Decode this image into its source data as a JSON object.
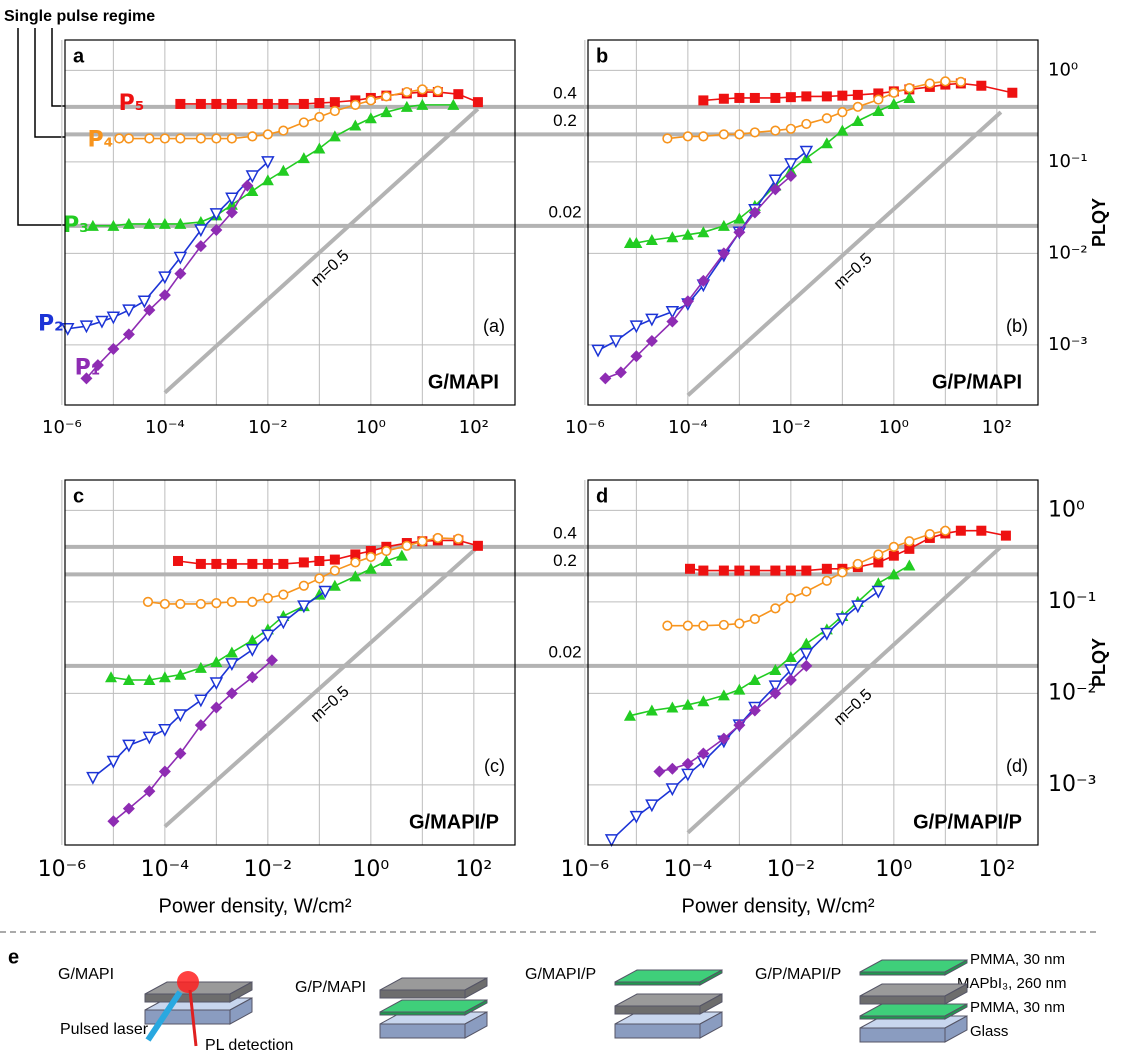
{
  "title": "Single pulse regime",
  "chart_data": [
    {
      "type": "line",
      "letter": "a",
      "sample": "G/MAPI",
      "caption": "(a)",
      "xlim": [
        1.15e-06,
        630
      ],
      "ylim": [
        0.00022,
        2.15
      ],
      "xticks": [
        {
          "value": 1e-06,
          "label": "10⁻⁶"
        },
        {
          "value": 0.0001,
          "label": "10⁻⁴"
        },
        {
          "value": 0.01,
          "label": "10⁻²"
        },
        {
          "value": 1,
          "label": "10⁰"
        },
        {
          "value": 100,
          "label": "10²"
        }
      ],
      "xgrid": [
        1e-05,
        0.001,
        0.1,
        10
      ],
      "yticks": [
        0.001,
        0.01,
        0.1,
        1
      ],
      "hlines": [
        0.4,
        0.2,
        0.02
      ],
      "slope": {
        "label": "m=0.5",
        "x": [
          0.0001,
          120
        ],
        "values": [
          0.0003,
          0.38
        ]
      },
      "series": [
        {
          "name": "P₅",
          "color": "#ee1111",
          "marker": "square",
          "x": [
            0.0002,
            0.0005,
            0.001,
            0.002,
            0.005,
            0.01,
            0.02,
            0.05,
            0.1,
            0.2,
            0.5,
            1,
            2,
            5,
            10,
            20,
            50,
            120
          ],
          "values": [
            0.43,
            0.43,
            0.43,
            0.43,
            0.43,
            0.43,
            0.43,
            0.43,
            0.44,
            0.45,
            0.47,
            0.5,
            0.53,
            0.56,
            0.58,
            0.58,
            0.55,
            0.45
          ]
        },
        {
          "name": "P₄",
          "color": "#f7941d",
          "marker": "circle-open",
          "x": [
            1.3e-05,
            2e-05,
            5e-05,
            0.0001,
            0.0002,
            0.0005,
            0.001,
            0.002,
            0.005,
            0.01,
            0.02,
            0.05,
            0.1,
            0.2,
            0.5,
            1,
            2,
            5,
            10,
            20
          ],
          "values": [
            0.18,
            0.18,
            0.18,
            0.18,
            0.18,
            0.18,
            0.18,
            0.18,
            0.19,
            0.2,
            0.22,
            0.27,
            0.31,
            0.36,
            0.42,
            0.47,
            0.52,
            0.58,
            0.62,
            0.6
          ]
        },
        {
          "name": "P₃",
          "color": "#22cc22",
          "marker": "triangle",
          "x": [
            4e-06,
            1e-05,
            2e-05,
            5e-05,
            0.0001,
            0.0002,
            0.0005,
            0.001,
            0.002,
            0.005,
            0.01,
            0.02,
            0.05,
            0.1,
            0.2,
            0.5,
            1,
            2,
            5,
            10,
            40
          ],
          "values": [
            0.02,
            0.02,
            0.021,
            0.021,
            0.021,
            0.021,
            0.022,
            0.026,
            0.034,
            0.048,
            0.063,
            0.08,
            0.11,
            0.14,
            0.19,
            0.25,
            0.3,
            0.35,
            0.4,
            0.42,
            0.42
          ]
        },
        {
          "name": "P₂",
          "color": "#1c34d6",
          "marker": "triangle-down-open",
          "x": [
            1.3e-06,
            3e-06,
            6e-06,
            1e-05,
            2e-05,
            4e-05,
            0.0001,
            0.0002,
            0.0005,
            0.001,
            0.002,
            0.005,
            0.01
          ],
          "values": [
            0.0015,
            0.0016,
            0.0018,
            0.002,
            0.0024,
            0.003,
            0.0055,
            0.009,
            0.018,
            0.027,
            0.04,
            0.07,
            0.1
          ]
        },
        {
          "name": "P₁",
          "color": "#8e2cb3",
          "marker": "diamond",
          "x": [
            3e-06,
            5e-06,
            1e-05,
            2e-05,
            5e-05,
            0.0001,
            0.0002,
            0.0005,
            0.001,
            0.002,
            0.004
          ],
          "values": [
            0.00043,
            0.0006,
            0.0009,
            0.0013,
            0.0024,
            0.0035,
            0.006,
            0.012,
            0.018,
            0.028,
            0.055
          ]
        }
      ]
    },
    {
      "type": "line",
      "letter": "b",
      "sample": "G/P/MAPI",
      "caption": "(b)",
      "ylabel": "PLQY",
      "xlim": [
        1.15e-06,
        630
      ],
      "ylim": [
        0.00022,
        2.15
      ],
      "xticks": [
        {
          "value": 1e-06,
          "label": "10⁻⁶"
        },
        {
          "value": 0.0001,
          "label": "10⁻⁴"
        },
        {
          "value": 0.01,
          "label": "10⁻²"
        },
        {
          "value": 1,
          "label": "10⁰"
        },
        {
          "value": 100,
          "label": "10²"
        }
      ],
      "xgrid": [
        1e-05,
        0.001,
        0.1,
        10
      ],
      "yticks": [
        {
          "value": 0.001,
          "label": "10⁻³"
        },
        {
          "value": 0.01,
          "label": "10⁻²"
        },
        {
          "value": 0.1,
          "label": "10⁻¹"
        },
        {
          "value": 1,
          "label": "10⁰"
        }
      ],
      "hlines": [
        0.4,
        0.2,
        0.02
      ],
      "slope": {
        "label": "m=0.5",
        "x": [
          0.0001,
          120
        ],
        "values": [
          0.00028,
          0.35
        ]
      },
      "series": [
        {
          "color": "#ee1111",
          "marker": "square",
          "x": [
            0.0002,
            0.0005,
            0.001,
            0.002,
            0.005,
            0.01,
            0.02,
            0.05,
            0.1,
            0.2,
            0.5,
            1,
            2,
            5,
            10,
            20,
            50,
            200
          ],
          "values": [
            0.47,
            0.49,
            0.5,
            0.5,
            0.5,
            0.51,
            0.52,
            0.52,
            0.53,
            0.54,
            0.56,
            0.59,
            0.62,
            0.66,
            0.7,
            0.72,
            0.68,
            0.57
          ]
        },
        {
          "color": "#f7941d",
          "marker": "circle-open",
          "x": [
            4e-05,
            0.0001,
            0.0002,
            0.0005,
            0.001,
            0.002,
            0.005,
            0.01,
            0.02,
            0.05,
            0.1,
            0.2,
            0.5,
            1,
            2,
            5,
            10,
            20
          ],
          "values": [
            0.18,
            0.19,
            0.19,
            0.2,
            0.2,
            0.21,
            0.22,
            0.23,
            0.26,
            0.3,
            0.35,
            0.4,
            0.48,
            0.57,
            0.64,
            0.72,
            0.76,
            0.75
          ]
        },
        {
          "color": "#22cc22",
          "marker": "triangle",
          "x": [
            7.5e-06,
            1e-05,
            2e-05,
            5e-05,
            0.0001,
            0.0002,
            0.0005,
            0.001,
            0.002,
            0.005,
            0.01,
            0.02,
            0.05,
            0.1,
            0.2,
            0.5,
            1,
            2
          ],
          "values": [
            0.013,
            0.013,
            0.014,
            0.015,
            0.016,
            0.017,
            0.02,
            0.024,
            0.033,
            0.055,
            0.08,
            0.11,
            0.16,
            0.22,
            0.28,
            0.36,
            0.43,
            0.5
          ]
        },
        {
          "color": "#1c34d6",
          "marker": "triangle-down-open",
          "x": [
            1.8e-06,
            4e-06,
            1e-05,
            2e-05,
            5e-05,
            0.0001,
            0.0002,
            0.0005,
            0.001,
            0.002,
            0.005,
            0.01,
            0.02
          ],
          "values": [
            0.00087,
            0.0011,
            0.0016,
            0.0019,
            0.0023,
            0.0028,
            0.0045,
            0.0095,
            0.017,
            0.03,
            0.063,
            0.095,
            0.13
          ]
        },
        {
          "color": "#8e2cb3",
          "marker": "diamond",
          "x": [
            2.5e-06,
            5e-06,
            1e-05,
            2e-05,
            5e-05,
            0.0001,
            0.0002,
            0.0005,
            0.001,
            0.002,
            0.005,
            0.01
          ],
          "values": [
            0.00043,
            0.0005,
            0.00075,
            0.0011,
            0.0018,
            0.003,
            0.005,
            0.01,
            0.017,
            0.028,
            0.05,
            0.07
          ]
        }
      ]
    },
    {
      "type": "line",
      "letter": "c",
      "sample": "G/MAPI/P",
      "caption": "(c)",
      "xlabel": "Power density, W/cm²",
      "xlim": [
        1.15e-06,
        630
      ],
      "ylim": [
        0.00022,
        2.15
      ],
      "xticks": [
        {
          "value": 1e-06,
          "label": "10⁻⁶"
        },
        {
          "value": 0.0001,
          "label": "10⁻⁴"
        },
        {
          "value": 0.01,
          "label": "10⁻²"
        },
        {
          "value": 1,
          "label": "10⁰"
        },
        {
          "value": 100,
          "label": "10²"
        }
      ],
      "xgrid": [
        1e-05,
        0.001,
        0.1,
        10
      ],
      "yticks": [
        0.001,
        0.01,
        0.1,
        1
      ],
      "hlines": [
        0.4,
        0.2,
        0.02
      ],
      "slope": {
        "label": "m=0.5",
        "x": [
          0.0001,
          120
        ],
        "values": [
          0.00035,
          0.4
        ]
      },
      "series": [
        {
          "color": "#ee1111",
          "marker": "square",
          "x": [
            0.00018,
            0.0005,
            0.001,
            0.002,
            0.005,
            0.01,
            0.02,
            0.05,
            0.1,
            0.2,
            0.5,
            1,
            2,
            5,
            10,
            20,
            50,
            120
          ],
          "values": [
            0.28,
            0.26,
            0.26,
            0.26,
            0.26,
            0.26,
            0.26,
            0.27,
            0.28,
            0.29,
            0.33,
            0.36,
            0.4,
            0.44,
            0.46,
            0.47,
            0.47,
            0.41
          ]
        },
        {
          "color": "#f7941d",
          "marker": "circle-open",
          "x": [
            4.7e-05,
            0.0001,
            0.0002,
            0.0005,
            0.001,
            0.002,
            0.005,
            0.01,
            0.02,
            0.05,
            0.1,
            0.2,
            0.5,
            1,
            2,
            5,
            10,
            20,
            50
          ],
          "values": [
            0.1,
            0.095,
            0.095,
            0.095,
            0.097,
            0.1,
            0.1,
            0.11,
            0.12,
            0.15,
            0.18,
            0.22,
            0.27,
            0.31,
            0.36,
            0.41,
            0.46,
            0.5,
            0.49
          ]
        },
        {
          "color": "#22cc22",
          "marker": "triangle",
          "x": [
            9e-06,
            2e-05,
            5e-05,
            0.0001,
            0.0002,
            0.0005,
            0.001,
            0.002,
            0.005,
            0.01,
            0.02,
            0.05,
            0.1,
            0.2,
            0.5,
            1,
            2,
            4
          ],
          "values": [
            0.015,
            0.014,
            0.014,
            0.015,
            0.016,
            0.019,
            0.022,
            0.028,
            0.038,
            0.05,
            0.07,
            0.09,
            0.12,
            0.15,
            0.19,
            0.23,
            0.28,
            0.32
          ]
        },
        {
          "color": "#1c34d6",
          "marker": "triangle-down-open",
          "x": [
            4e-06,
            1e-05,
            2e-05,
            5e-05,
            0.0001,
            0.0002,
            0.0005,
            0.001,
            0.002,
            0.005,
            0.01,
            0.02,
            0.05,
            0.13
          ],
          "values": [
            0.0012,
            0.0018,
            0.0027,
            0.0033,
            0.004,
            0.0058,
            0.0084,
            0.013,
            0.021,
            0.03,
            0.043,
            0.06,
            0.09,
            0.13
          ]
        },
        {
          "color": "#8e2cb3",
          "marker": "diamond",
          "x": [
            1e-05,
            2e-05,
            5e-05,
            0.0001,
            0.0002,
            0.0005,
            0.001,
            0.002,
            0.005,
            0.012
          ],
          "values": [
            0.0004,
            0.00055,
            0.00085,
            0.0014,
            0.0022,
            0.0045,
            0.007,
            0.01,
            0.015,
            0.023
          ]
        }
      ]
    },
    {
      "type": "line",
      "letter": "d",
      "sample": "G/P/MAPI/P",
      "caption": "(d)",
      "xlabel": "Power density, W/cm²",
      "ylabel": "PLQY",
      "xlim": [
        1.15e-06,
        630
      ],
      "ylim": [
        0.00022,
        2.15
      ],
      "xticks": [
        {
          "value": 1e-06,
          "label": "10⁻⁶"
        },
        {
          "value": 0.0001,
          "label": "10⁻⁴"
        },
        {
          "value": 0.01,
          "label": "10⁻²"
        },
        {
          "value": 1,
          "label": "10⁰"
        },
        {
          "value": 100,
          "label": "10²"
        }
      ],
      "xgrid": [
        1e-05,
        0.001,
        0.1,
        10
      ],
      "yticks": [
        {
          "value": 0.001,
          "label": "10⁻³"
        },
        {
          "value": 0.01,
          "label": "10⁻²"
        },
        {
          "value": 0.1,
          "label": "10⁻¹"
        },
        {
          "value": 1,
          "label": "10⁰"
        }
      ],
      "hlines": [
        0.4,
        0.2,
        0.02
      ],
      "slope": {
        "label": "m=0.5",
        "x": [
          0.0001,
          120
        ],
        "values": [
          0.0003,
          0.4
        ]
      },
      "series": [
        {
          "color": "#ee1111",
          "marker": "square",
          "x": [
            0.00011,
            0.0002,
            0.0005,
            0.001,
            0.002,
            0.005,
            0.01,
            0.02,
            0.05,
            0.1,
            0.2,
            0.5,
            1,
            2,
            5,
            10,
            20,
            50,
            150
          ],
          "values": [
            0.23,
            0.22,
            0.22,
            0.22,
            0.22,
            0.22,
            0.22,
            0.22,
            0.23,
            0.23,
            0.24,
            0.27,
            0.32,
            0.38,
            0.5,
            0.56,
            0.6,
            0.6,
            0.53
          ]
        },
        {
          "color": "#f7941d",
          "marker": "circle-open",
          "x": [
            4e-05,
            0.0001,
            0.0002,
            0.0005,
            0.001,
            0.002,
            0.005,
            0.01,
            0.02,
            0.05,
            0.1,
            0.2,
            0.5,
            1,
            2,
            5,
            10
          ],
          "values": [
            0.055,
            0.055,
            0.055,
            0.056,
            0.058,
            0.065,
            0.085,
            0.11,
            0.13,
            0.17,
            0.21,
            0.26,
            0.33,
            0.4,
            0.46,
            0.55,
            0.6
          ]
        },
        {
          "color": "#22cc22",
          "marker": "triangle",
          "x": [
            7.5e-06,
            2e-05,
            5e-05,
            0.0001,
            0.0002,
            0.0005,
            0.001,
            0.002,
            0.005,
            0.01,
            0.02,
            0.05,
            0.1,
            0.2,
            0.5,
            1,
            2
          ],
          "values": [
            0.0057,
            0.0065,
            0.007,
            0.0075,
            0.0082,
            0.0095,
            0.011,
            0.014,
            0.018,
            0.025,
            0.035,
            0.05,
            0.07,
            0.1,
            0.16,
            0.2,
            0.25
          ]
        },
        {
          "color": "#1c34d6",
          "marker": "triangle-down-open",
          "x": [
            3.3e-06,
            1e-05,
            2e-05,
            5e-05,
            0.0001,
            0.0002,
            0.0005,
            0.001,
            0.002,
            0.005,
            0.01,
            0.02,
            0.05,
            0.1,
            0.2,
            0.5
          ],
          "values": [
            0.00025,
            0.00045,
            0.0006,
            0.0009,
            0.0013,
            0.0018,
            0.003,
            0.0045,
            0.007,
            0.012,
            0.018,
            0.027,
            0.045,
            0.065,
            0.09,
            0.13
          ]
        },
        {
          "color": "#8e2cb3",
          "marker": "diamond",
          "x": [
            2.8e-05,
            5e-05,
            0.0001,
            0.0002,
            0.0005,
            0.001,
            0.002,
            0.005,
            0.01,
            0.02
          ],
          "values": [
            0.0014,
            0.0015,
            0.0017,
            0.0022,
            0.0032,
            0.0045,
            0.0065,
            0.01,
            0.014,
            0.02
          ]
        }
      ]
    }
  ],
  "panel_e": {
    "letter": "e",
    "samples": [
      "G/MAPI",
      "G/P/MAPI",
      "G/MAPI/P",
      "G/P/MAPI/P"
    ],
    "pulsed_laser": "Pulsed laser",
    "pl_detection": "PL detection",
    "layers": [
      "PMMA, 30 nm",
      "MAPbI₃, 260 nm",
      "PMMA, 30 nm",
      "Glass"
    ]
  }
}
